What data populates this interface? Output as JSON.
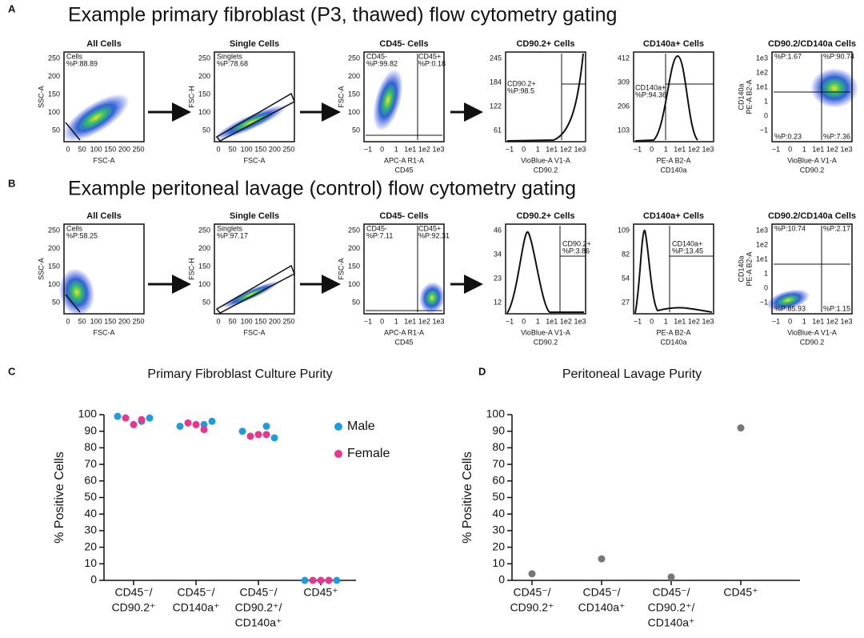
{
  "gating": {
    "rows": [
      {
        "letter": "A",
        "title": "Example primary fibroblast (P3, thawed) flow cytometry gating",
        "plots": [
          {
            "title": "All Cells",
            "gates": [
              "Cells",
              "%P:88.89"
            ],
            "xticks": [
              0,
              50,
              100,
              150,
              200,
              250
            ],
            "yticks": [
              50,
              100,
              150,
              200,
              250
            ],
            "xlabel": [
              "FSC-A"
            ],
            "ylabel": [
              "SSC-A"
            ]
          },
          {
            "title": "Single Cells",
            "gates": [
              "Singlets",
              "%P:78.68"
            ],
            "xticks": [
              0,
              50,
              100,
              150,
              200,
              250
            ],
            "yticks": [
              50,
              100,
              150,
              200,
              250
            ],
            "xlabel": [
              "FSC-A"
            ],
            "ylabel": [
              "FSC-H"
            ]
          },
          {
            "title": "CD45- Cells",
            "gates": [
              "CD45-",
              "%P:99.82",
              "CD45+",
              "%P:0.18"
            ],
            "xticks": [
              "−1",
              0,
              1,
              "1e1",
              "1e2",
              "1e3"
            ],
            "yticks": [
              50,
              100,
              150,
              200,
              250
            ],
            "xlabel": [
              "APC-A R1-A",
              "CD45"
            ],
            "ylabel": [
              "FSC-A"
            ]
          },
          {
            "title": "CD90.2+ Cells",
            "gates": [
              "CD90.2+",
              "%P:98.5"
            ],
            "xticks": [
              "−1",
              0,
              1,
              "1e1",
              "1e2",
              "1e3"
            ],
            "yticks": [
              61,
              122,
              184,
              245
            ],
            "xlabel": [
              "VioBlue-A V1-A",
              "CD90.2"
            ]
          },
          {
            "title": "CD140a+ Cells",
            "gates": [
              "CD140a+",
              "%P:94.36"
            ],
            "xticks": [
              "−1",
              0,
              1,
              "1e1",
              "1e2",
              "1e3"
            ],
            "yticks": [
              103,
              206,
              309,
              412
            ],
            "xlabel": [
              "PE-A B2-A",
              "CD140a"
            ]
          },
          {
            "title": "CD90.2/CD140a Cells",
            "gates": [
              "%P:1.67",
              "%P:90.74",
              "%P:0.23",
              "%P:7.36"
            ],
            "xticks": [
              "−1",
              0,
              1,
              "1e1",
              "1e2",
              "1e3"
            ],
            "yticks": [
              "−1",
              0,
              1,
              "1e1",
              "1e2",
              "1e3"
            ],
            "xlabel": [
              "VioBlue-A V1-A",
              "CD90.2"
            ],
            "ylabel": [
              "PE-A B2-A",
              "CD140a"
            ]
          }
        ]
      },
      {
        "letter": "B",
        "title": "Example peritoneal lavage (control) flow cytometry gating",
        "plots": [
          {
            "title": "All Cells",
            "gates": [
              "Cells",
              "%P:58.25"
            ],
            "xticks": [
              0,
              50,
              100,
              150,
              200,
              250
            ],
            "yticks": [
              50,
              100,
              150,
              200,
              250
            ],
            "xlabel": [
              "FSC-A"
            ],
            "ylabel": [
              "SSC-A"
            ]
          },
          {
            "title": "Single Cells",
            "gates": [
              "Singlets",
              "%P:97.17"
            ],
            "xticks": [
              0,
              50,
              100,
              150,
              200,
              250
            ],
            "yticks": [
              50,
              100,
              150,
              200,
              250
            ],
            "xlabel": [
              "FSC-A"
            ],
            "ylabel": [
              "FSC-H"
            ]
          },
          {
            "title": "CD45- Cells",
            "gates": [
              "CD45-",
              "%P:7.11",
              "CD45+",
              "%P:92.31"
            ],
            "xticks": [
              "−1",
              0,
              1,
              "1e1",
              "1e2",
              "1e3"
            ],
            "yticks": [
              50,
              100,
              150,
              200,
              250
            ],
            "xlabel": [
              "APC-A R1-A",
              "CD45"
            ],
            "ylabel": [
              "FSC-A"
            ]
          },
          {
            "title": "CD90.2+ Cells",
            "gates": [
              "CD90.2+",
              "%P:3.86"
            ],
            "xticks": [
              "−1",
              0,
              1,
              "1e1",
              "1e2",
              "1e3"
            ],
            "yticks": [
              12,
              23,
              34,
              46
            ],
            "xlabel": [
              "VioBlue-A V1-A",
              "CD90.2"
            ]
          },
          {
            "title": "CD140a+ Cells",
            "gates": [
              "CD140a+",
              "%P:13.45"
            ],
            "xticks": [
              "−1",
              0,
              1,
              "1e1",
              "1e2",
              "1e3"
            ],
            "yticks": [
              27,
              54,
              82,
              109
            ],
            "xlabel": [
              "PE-A B2-A",
              "CD140a"
            ]
          },
          {
            "title": "CD90.2/CD140a Cells",
            "gates": [
              "%P:10.74",
              "%P:2.17",
              "%P:85.93",
              "%P:1.15"
            ],
            "xticks": [
              "−1",
              0,
              1,
              "1e1",
              "1e2",
              "1e3"
            ],
            "yticks": [
              "−1",
              0,
              1,
              "1e1",
              "1e2",
              "1e3"
            ],
            "xlabel": [
              "VioBlue-A V1-A",
              "CD90.2"
            ],
            "ylabel": [
              "PE-A B2-A",
              "CD140a"
            ]
          }
        ]
      }
    ]
  },
  "chart_data": [
    {
      "type": "strip",
      "letter": "C",
      "title": "Primary Fibroblast Culture Purity",
      "ylabel": "% Positive Cells",
      "categories": [
        [
          "CD45⁻/",
          "CD90.2⁺"
        ],
        [
          "CD45⁻/",
          "CD140a⁺"
        ],
        [
          "CD45⁻/",
          "CD90.2⁺/",
          "CD140a⁺"
        ],
        [
          "CD45⁺"
        ]
      ],
      "series": [
        {
          "name": "Male",
          "color": "#1f9be0",
          "values": [
            [
              99,
              96,
              98
            ],
            [
              93,
              94,
              96
            ],
            [
              90,
              93,
              86
            ],
            [
              0,
              0,
              0
            ]
          ]
        },
        {
          "name": "Female",
          "color": "#e8358d",
          "values": [
            [
              98,
              94,
              97
            ],
            [
              95,
              94,
              91
            ],
            [
              87,
              88,
              88
            ],
            [
              0,
              0,
              0
            ]
          ]
        }
      ],
      "ylim": [
        0,
        100
      ],
      "yticks": [
        0,
        10,
        20,
        30,
        40,
        50,
        60,
        70,
        80,
        90,
        100
      ]
    },
    {
      "type": "strip",
      "letter": "D",
      "title": "Peritoneal Lavage Purity",
      "ylabel": "% Positive Cells",
      "categories": [
        [
          "CD45⁻/",
          "CD90.2⁺"
        ],
        [
          "CD45⁻/",
          "CD140a⁺"
        ],
        [
          "CD45⁻/",
          "CD90.2⁺/",
          "CD140a⁺"
        ],
        [
          "CD45⁺"
        ]
      ],
      "series": [
        {
          "color": "#777777",
          "values": [
            [
              4
            ],
            [
              13
            ],
            [
              2
            ],
            [
              92
            ]
          ]
        }
      ],
      "ylim": [
        0,
        100
      ],
      "yticks": [
        0,
        10,
        20,
        30,
        40,
        50,
        60,
        70,
        80,
        90,
        100
      ]
    }
  ]
}
